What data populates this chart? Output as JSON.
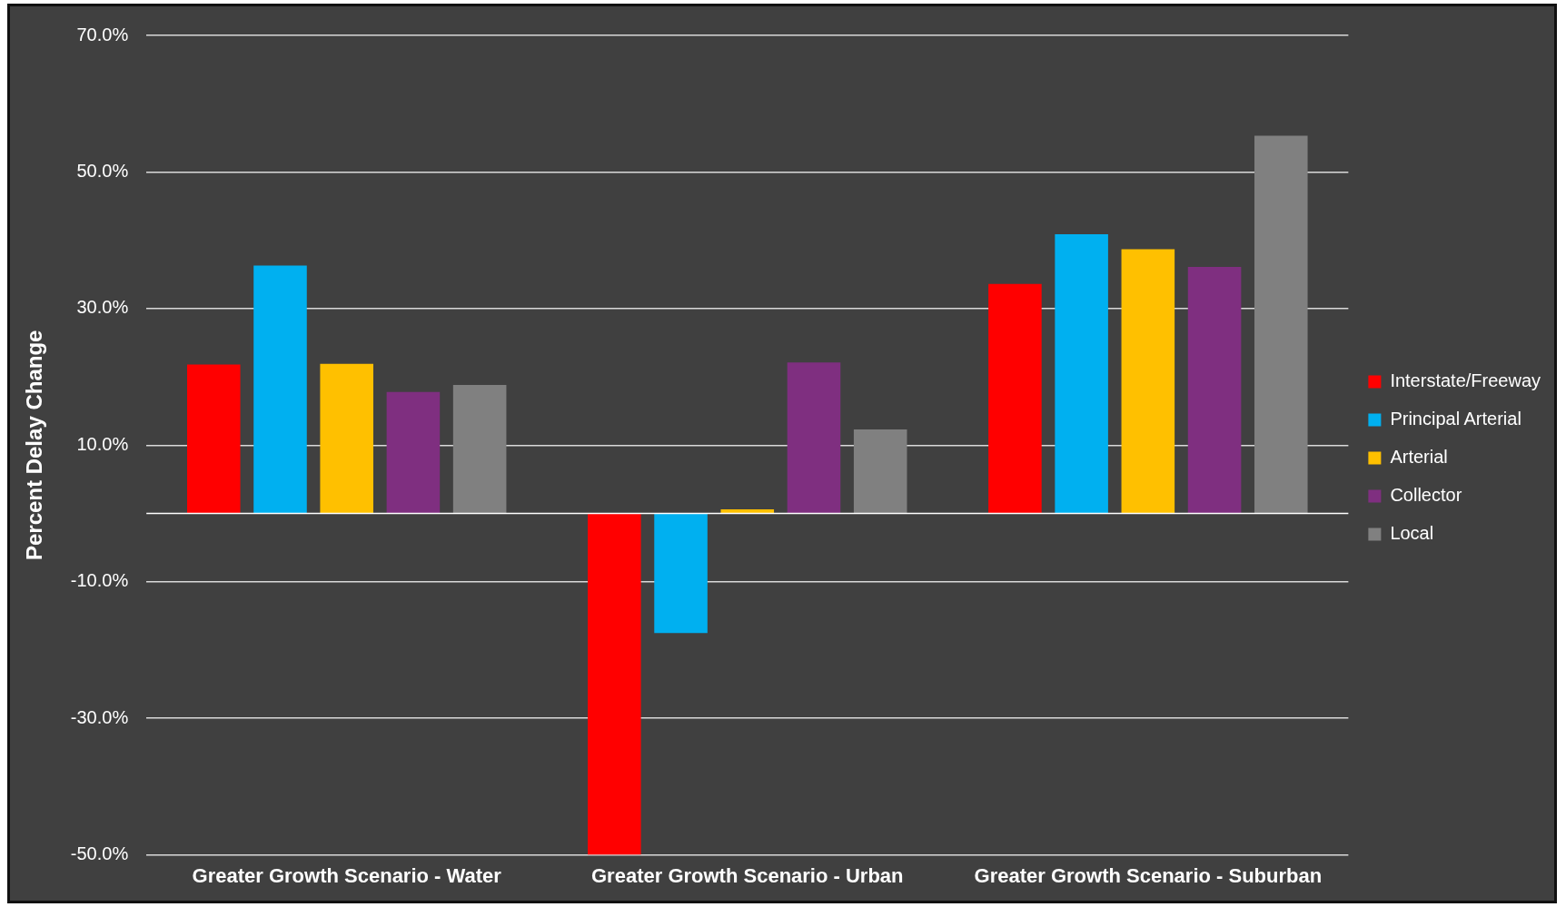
{
  "chart_data": {
    "type": "bar",
    "ylabel": "Percent Delay Change",
    "categories": [
      "Greater Growth Scenario - Water",
      "Greater Growth Scenario - Urban",
      "Greater Growth Scenario - Suburban"
    ],
    "series": [
      {
        "name": "Interstate/Freeway",
        "color": "#ff0000",
        "values": [
          21.8,
          -50,
          33.6
        ]
      },
      {
        "name": "Principal Arterial",
        "color": "#00b0f0",
        "values": [
          36.3,
          -17.5,
          40.9
        ]
      },
      {
        "name": "Arterial",
        "color": "#ffc000",
        "values": [
          21.9,
          0.6,
          38.7
        ]
      },
      {
        "name": "Collector",
        "color": "#7f2f80",
        "values": [
          17.8,
          22.1,
          36.1
        ]
      },
      {
        "name": "Local",
        "color": "#808080",
        "values": [
          18.8,
          12.3,
          55.3
        ]
      }
    ],
    "ylim": [
      -50,
      70
    ],
    "yticks": [
      {
        "value": -50,
        "label": "-50.0%"
      },
      {
        "value": -30,
        "label": "-30.0%"
      },
      {
        "value": -10,
        "label": "-10.0%"
      },
      {
        "value": 10,
        "label": "10.0%"
      },
      {
        "value": 30,
        "label": "30.0%"
      },
      {
        "value": 50,
        "label": "50.0%"
      },
      {
        "value": 70,
        "label": "70.0%"
      }
    ],
    "grid": "y",
    "legend": "right"
  }
}
